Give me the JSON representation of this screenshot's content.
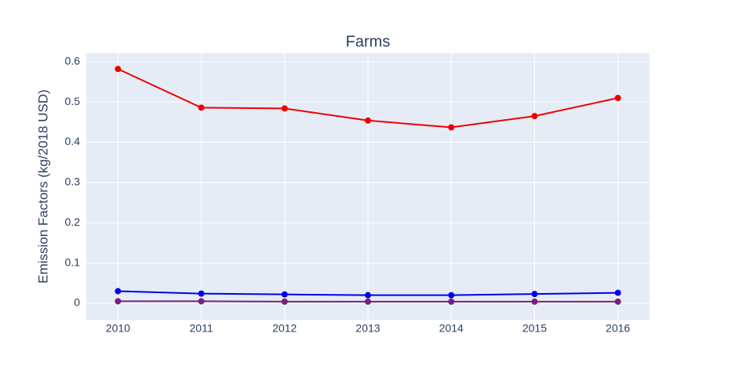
{
  "chart_data": {
    "type": "line",
    "title": "Farms",
    "y_label": "Emission Factors (kg/2018 USD)",
    "x": [
      2010,
      2011,
      2012,
      2013,
      2014,
      2015,
      2016
    ],
    "series": [
      {
        "color": "#ee0000",
        "values": [
          0.582,
          0.486,
          0.484,
          0.454,
          0.437,
          0.465,
          0.51
        ]
      },
      {
        "color": "#0000ee",
        "values": [
          0.03,
          0.024,
          0.022,
          0.02,
          0.02,
          0.023,
          0.026
        ]
      },
      {
        "color": "#7b1f7b",
        "values": [
          0.005,
          0.005,
          0.004,
          0.004,
          0.004,
          0.004,
          0.004
        ]
      }
    ],
    "xlim": [
      2009.62,
      2016.38
    ],
    "xticks": [
      2010,
      2011,
      2012,
      2013,
      2014,
      2015,
      2016
    ],
    "ylim": [
      -0.041,
      0.621
    ],
    "yticks": [
      0,
      0.1,
      0.2,
      0.3,
      0.4,
      0.5,
      0.6
    ],
    "grid": true
  }
}
